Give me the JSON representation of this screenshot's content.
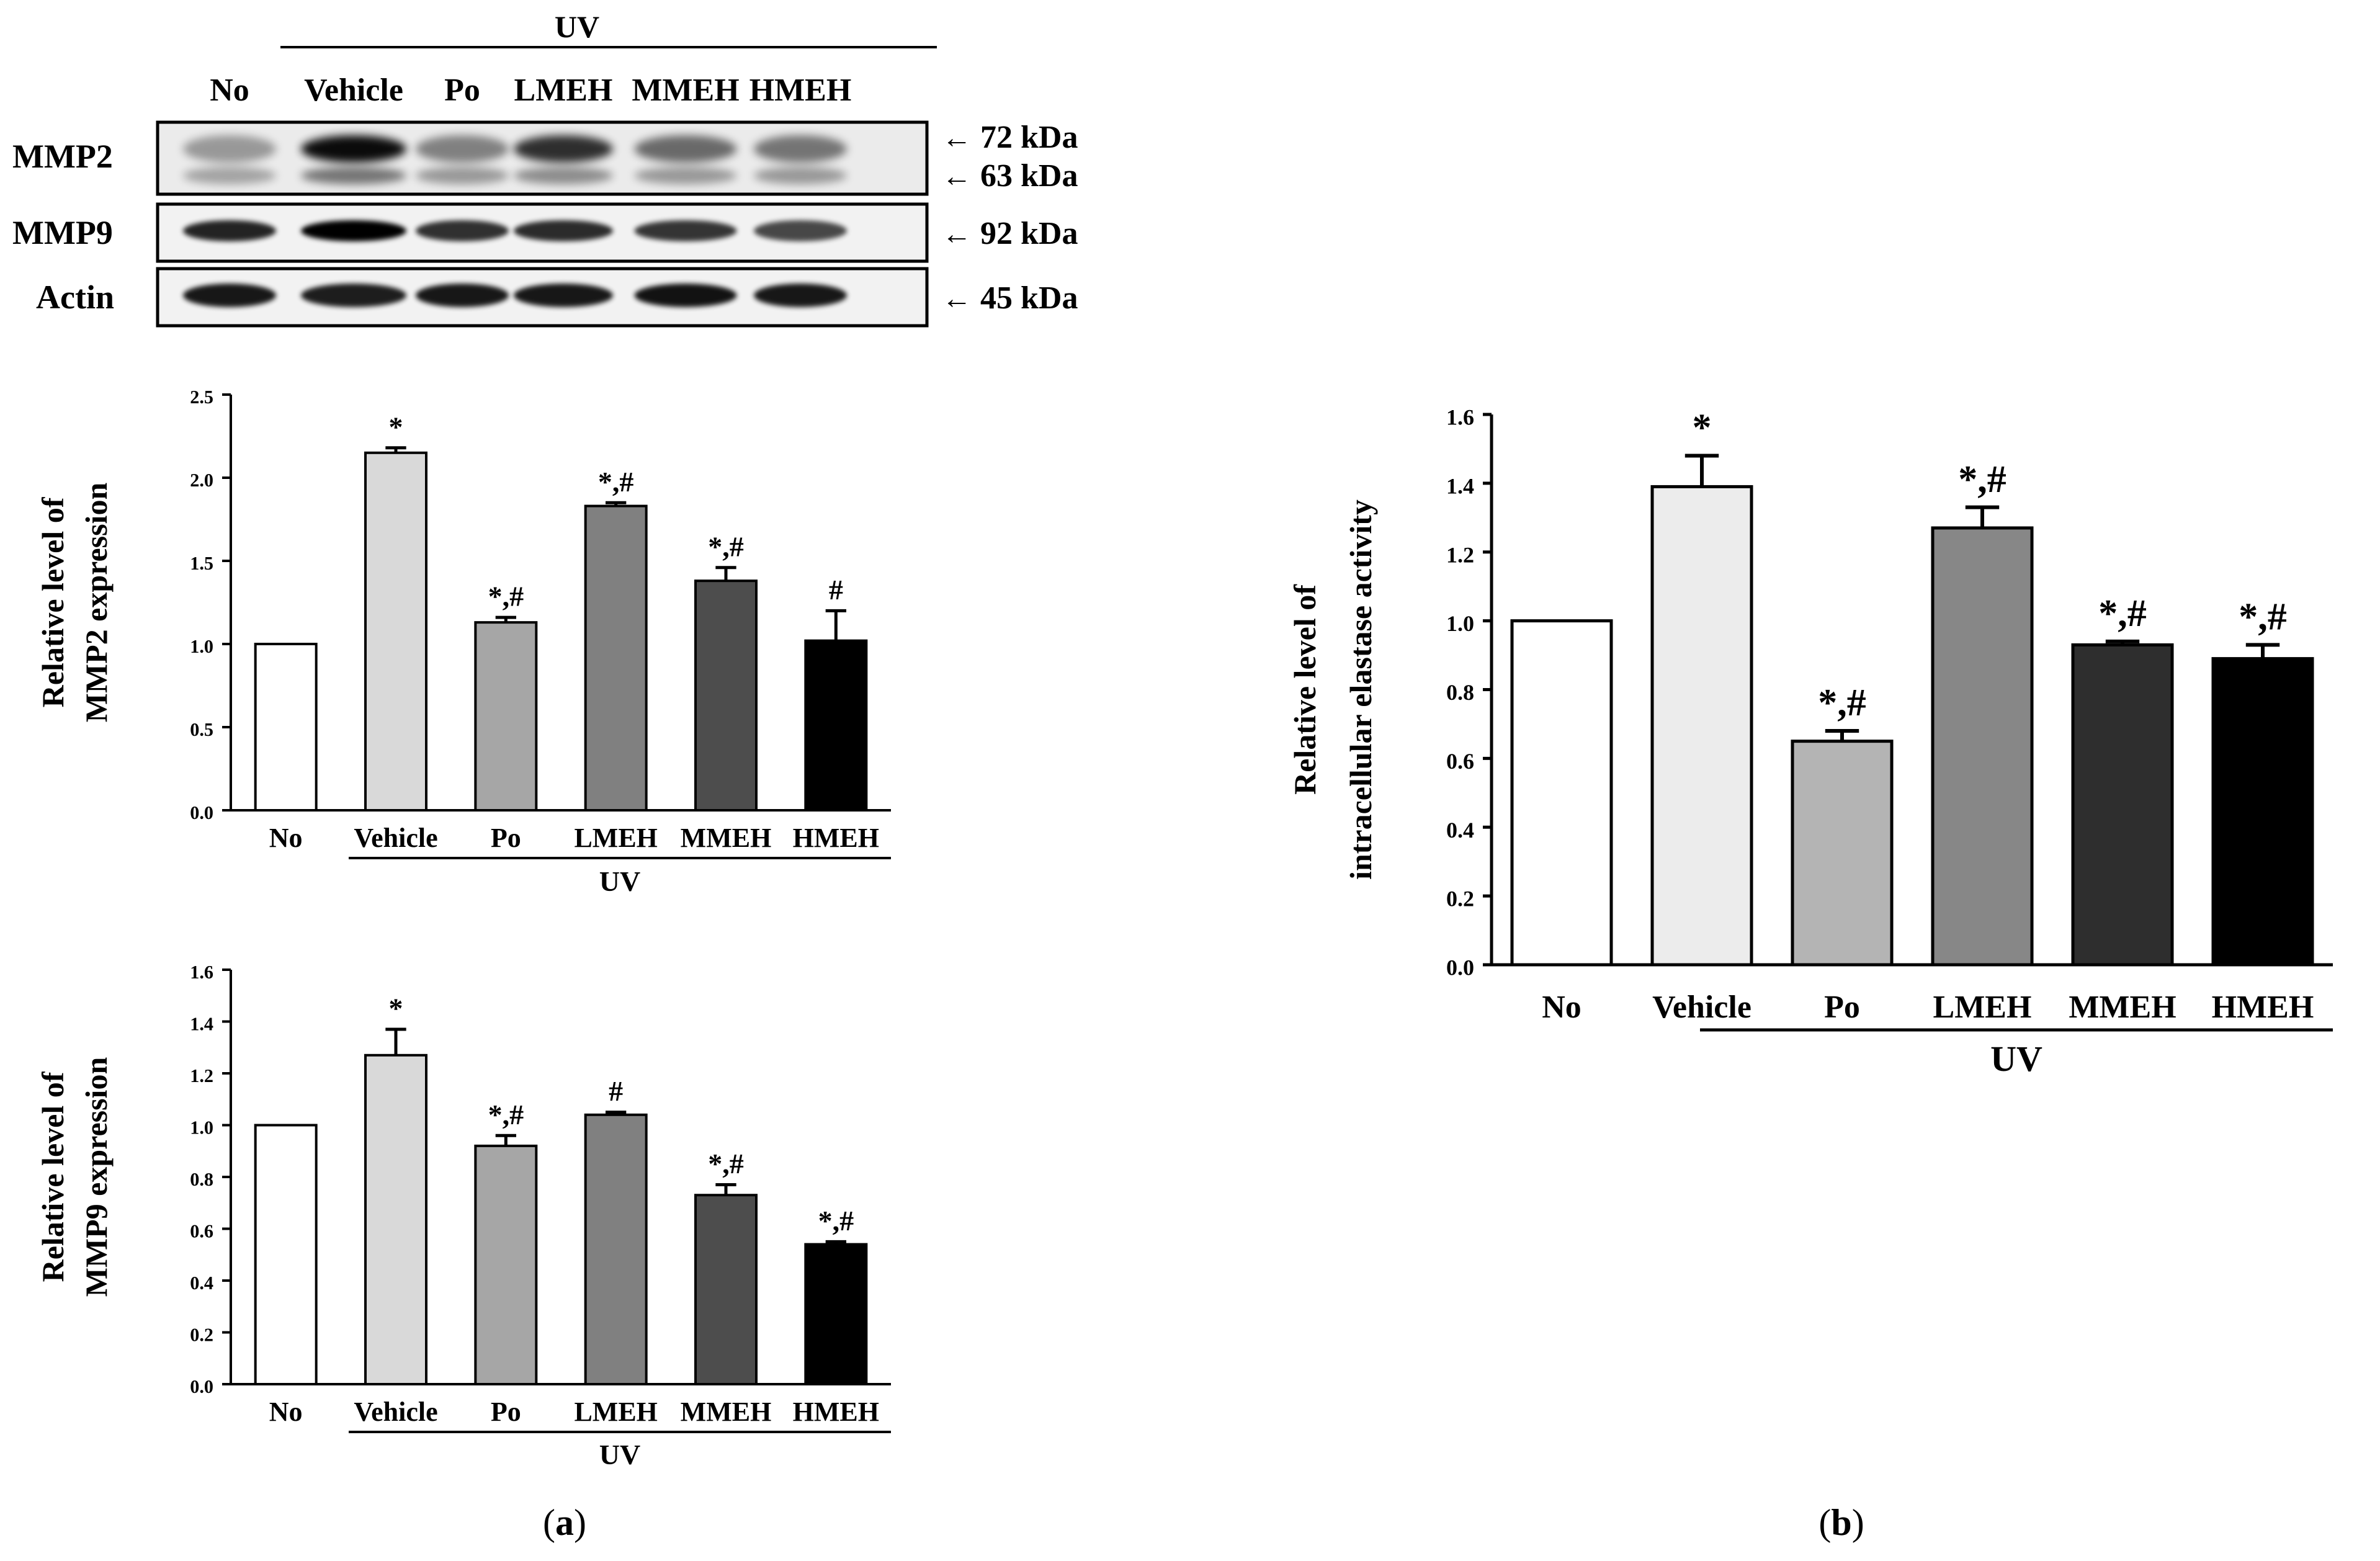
{
  "blot": {
    "uv_label": "UV",
    "lanes": [
      "No",
      "Vehicle",
      "Po",
      "LMEH",
      "MMEH",
      "HMEH"
    ],
    "rows": [
      {
        "label": "MMP2",
        "bands": [
          "72 kDa",
          "63 kDa"
        ]
      },
      {
        "label": "MMP9",
        "bands": [
          "92 kDa"
        ]
      },
      {
        "label": "Actin",
        "bands": [
          "45 kDa"
        ]
      }
    ],
    "arrow_glyph": "←"
  },
  "panel_labels": {
    "a": "a",
    "b": "b",
    "open": "(",
    "close": ")"
  },
  "colors": {
    "No": "#ffffff",
    "Vehicle": "#d9d9d9",
    "Po": "#a6a6a6",
    "LMEH": "#808080",
    "MMEH": "#4d4d4d",
    "HMEH": "#000000",
    "Vehicle_b": "#ececec",
    "Po_b": "#b4b4b4",
    "LMEH_b": "#878787",
    "MMEH_b": "#2e2e2e"
  },
  "chart_data": [
    {
      "id": "mmp2",
      "type": "bar",
      "categories": [
        "No",
        "Vehicle",
        "Po",
        "LMEH",
        "MMEH",
        "HMEH"
      ],
      "values": [
        1.0,
        2.15,
        1.13,
        1.83,
        1.38,
        1.02
      ],
      "errors": [
        0,
        0.03,
        0.03,
        0.02,
        0.08,
        0.18
      ],
      "annotations": [
        "",
        "*",
        "*,#",
        "*,#",
        "*,#",
        "#"
      ],
      "ylabel_lines": [
        "Relative level of",
        "MMP2 expression"
      ],
      "ylim": [
        0,
        2.5
      ],
      "yticks": [
        "0.0",
        "0.5",
        "1.0",
        "1.5",
        "2.0",
        "2.5"
      ],
      "group_label": "UV"
    },
    {
      "id": "mmp9",
      "type": "bar",
      "categories": [
        "No",
        "Vehicle",
        "Po",
        "LMEH",
        "MMEH",
        "HMEH"
      ],
      "values": [
        1.0,
        1.27,
        0.92,
        1.04,
        0.73,
        0.54
      ],
      "errors": [
        0,
        0.1,
        0.04,
        0.01,
        0.04,
        0.01
      ],
      "annotations": [
        "",
        "*",
        "*,#",
        "#",
        "*,#",
        "*,#"
      ],
      "ylabel_lines": [
        "Relative level of",
        "MMP9 expression"
      ],
      "ylim": [
        0,
        1.6
      ],
      "yticks": [
        "0.0",
        "0.2",
        "0.4",
        "0.6",
        "0.8",
        "1.0",
        "1.2",
        "1.4",
        "1.6"
      ],
      "group_label": "UV"
    },
    {
      "id": "elastase",
      "type": "bar",
      "categories": [
        "No",
        "Vehicle",
        "Po",
        "LMEH",
        "MMEH",
        "HMEH"
      ],
      "values": [
        1.0,
        1.39,
        0.65,
        1.27,
        0.93,
        0.89
      ],
      "errors": [
        0,
        0.09,
        0.03,
        0.06,
        0.01,
        0.04
      ],
      "annotations": [
        "",
        "*",
        "*,#",
        "*,#",
        "*,#",
        "*,#"
      ],
      "ylabel_lines": [
        "Relative level of",
        "intracellular elastase activity"
      ],
      "ylim": [
        0,
        1.6
      ],
      "yticks": [
        "0.0",
        "0.2",
        "0.4",
        "0.6",
        "0.8",
        "1.0",
        "1.2",
        "1.4",
        "1.6"
      ],
      "group_label": "UV"
    }
  ]
}
